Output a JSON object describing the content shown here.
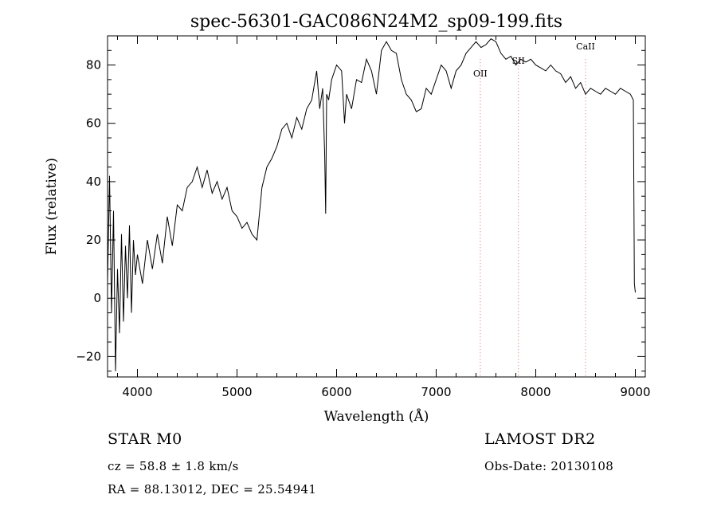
{
  "chart_data": {
    "type": "line",
    "title": "spec-56301-GAC086N24M2_sp09-199.fits",
    "xlabel": "Wavelength (Å)",
    "ylabel": "Flux (relative)",
    "xlim": [
      3700,
      9100
    ],
    "ylim": [
      -27,
      90
    ],
    "x_ticks": [
      4000,
      5000,
      6000,
      7000,
      8000,
      9000
    ],
    "y_ticks": [
      -20,
      0,
      20,
      40,
      60,
      80
    ],
    "grid": false,
    "line_color": "#000000",
    "series": [
      {
        "x": [
          3700,
          3720,
          3740,
          3760,
          3780,
          3800,
          3820,
          3840,
          3860,
          3880,
          3900,
          3920,
          3940,
          3960,
          3980,
          4000,
          4050,
          4100,
          4150,
          4200,
          4250,
          4300,
          4350,
          4400,
          4450,
          4500,
          4550,
          4600,
          4650,
          4700,
          4750,
          4800,
          4850,
          4900,
          4950,
          5000,
          5050,
          5100,
          5150,
          5200,
          5250,
          5300,
          5350,
          5400,
          5450,
          5500,
          5550,
          5600,
          5650,
          5700,
          5750,
          5800,
          5830,
          5860,
          5880,
          5890,
          5900,
          5920,
          5950,
          6000,
          6050,
          6080,
          6100,
          6150,
          6200,
          6250,
          6300,
          6350,
          6400,
          6450,
          6500,
          6550,
          6600,
          6650,
          6700,
          6750,
          6800,
          6850,
          6900,
          6950,
          7000,
          7050,
          7100,
          7150,
          7200,
          7250,
          7300,
          7350,
          7400,
          7450,
          7500,
          7550,
          7600,
          7650,
          7700,
          7750,
          7800,
          7850,
          7900,
          7950,
          8000,
          8050,
          8100,
          8150,
          8200,
          8250,
          8300,
          8350,
          8400,
          8450,
          8500,
          8550,
          8600,
          8650,
          8700,
          8750,
          8800,
          8850,
          8900,
          8950,
          8980,
          8990,
          9000
        ],
        "y": [
          5,
          42,
          -5,
          30,
          -25,
          10,
          -12,
          22,
          -8,
          18,
          0,
          25,
          -5,
          20,
          8,
          15,
          5,
          20,
          10,
          22,
          12,
          28,
          18,
          32,
          30,
          38,
          40,
          45,
          38,
          44,
          36,
          40,
          34,
          38,
          30,
          28,
          24,
          26,
          22,
          20,
          38,
          45,
          48,
          52,
          58,
          60,
          55,
          62,
          58,
          65,
          68,
          78,
          65,
          72,
          50,
          29,
          70,
          68,
          75,
          80,
          78,
          60,
          70,
          65,
          75,
          74,
          82,
          78,
          70,
          85,
          88,
          85,
          84,
          75,
          70,
          68,
          64,
          65,
          72,
          70,
          75,
          80,
          78,
          72,
          78,
          80,
          84,
          86,
          88,
          86,
          87,
          89,
          88,
          84,
          82,
          83,
          80,
          82,
          81,
          82,
          80,
          79,
          78,
          80,
          78,
          77,
          74,
          76,
          72,
          74,
          70,
          72,
          71,
          70,
          72,
          71,
          70,
          72,
          71,
          70,
          68,
          5,
          2
        ]
      }
    ],
    "annotations": [
      {
        "label": "OII",
        "x": 7443
      },
      {
        "label": "SII",
        "x": 7826
      },
      {
        "label": "CaII",
        "x": 8500
      }
    ],
    "annotation_line_color": "#e06060"
  },
  "footer": {
    "object_class": "STAR    M0",
    "survey": "LAMOST  DR2",
    "redshift": "cz = 58.8 ± 1.8 km/s",
    "obs_date": "Obs-Date: 20130108",
    "coords": "RA =   88.13012, DEC =   25.54941"
  }
}
